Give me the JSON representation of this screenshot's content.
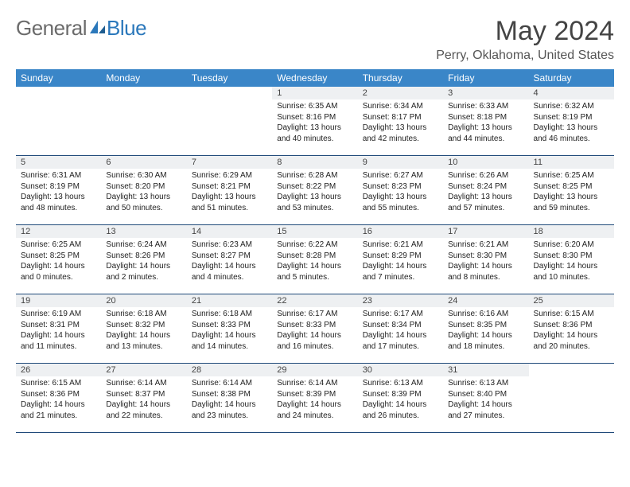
{
  "logo": {
    "general": "General",
    "blue": "Blue"
  },
  "title": "May 2024",
  "location": "Perry, Oklahoma, United States",
  "colors": {
    "header_bg": "#3a86c8",
    "header_text": "#ffffff",
    "daynum_bg": "#eef0f2",
    "week_border": "#204a7a",
    "title_color": "#444444",
    "logo_gray": "#6b6b6b",
    "logo_blue": "#2b78bb"
  },
  "day_names": [
    "Sunday",
    "Monday",
    "Tuesday",
    "Wednesday",
    "Thursday",
    "Friday",
    "Saturday"
  ],
  "weeks": [
    [
      null,
      null,
      null,
      {
        "n": "1",
        "sr": "Sunrise: 6:35 AM",
        "ss": "Sunset: 8:16 PM",
        "d1": "Daylight: 13 hours",
        "d2": "and 40 minutes."
      },
      {
        "n": "2",
        "sr": "Sunrise: 6:34 AM",
        "ss": "Sunset: 8:17 PM",
        "d1": "Daylight: 13 hours",
        "d2": "and 42 minutes."
      },
      {
        "n": "3",
        "sr": "Sunrise: 6:33 AM",
        "ss": "Sunset: 8:18 PM",
        "d1": "Daylight: 13 hours",
        "d2": "and 44 minutes."
      },
      {
        "n": "4",
        "sr": "Sunrise: 6:32 AM",
        "ss": "Sunset: 8:19 PM",
        "d1": "Daylight: 13 hours",
        "d2": "and 46 minutes."
      }
    ],
    [
      {
        "n": "5",
        "sr": "Sunrise: 6:31 AM",
        "ss": "Sunset: 8:19 PM",
        "d1": "Daylight: 13 hours",
        "d2": "and 48 minutes."
      },
      {
        "n": "6",
        "sr": "Sunrise: 6:30 AM",
        "ss": "Sunset: 8:20 PM",
        "d1": "Daylight: 13 hours",
        "d2": "and 50 minutes."
      },
      {
        "n": "7",
        "sr": "Sunrise: 6:29 AM",
        "ss": "Sunset: 8:21 PM",
        "d1": "Daylight: 13 hours",
        "d2": "and 51 minutes."
      },
      {
        "n": "8",
        "sr": "Sunrise: 6:28 AM",
        "ss": "Sunset: 8:22 PM",
        "d1": "Daylight: 13 hours",
        "d2": "and 53 minutes."
      },
      {
        "n": "9",
        "sr": "Sunrise: 6:27 AM",
        "ss": "Sunset: 8:23 PM",
        "d1": "Daylight: 13 hours",
        "d2": "and 55 minutes."
      },
      {
        "n": "10",
        "sr": "Sunrise: 6:26 AM",
        "ss": "Sunset: 8:24 PM",
        "d1": "Daylight: 13 hours",
        "d2": "and 57 minutes."
      },
      {
        "n": "11",
        "sr": "Sunrise: 6:25 AM",
        "ss": "Sunset: 8:25 PM",
        "d1": "Daylight: 13 hours",
        "d2": "and 59 minutes."
      }
    ],
    [
      {
        "n": "12",
        "sr": "Sunrise: 6:25 AM",
        "ss": "Sunset: 8:25 PM",
        "d1": "Daylight: 14 hours",
        "d2": "and 0 minutes."
      },
      {
        "n": "13",
        "sr": "Sunrise: 6:24 AM",
        "ss": "Sunset: 8:26 PM",
        "d1": "Daylight: 14 hours",
        "d2": "and 2 minutes."
      },
      {
        "n": "14",
        "sr": "Sunrise: 6:23 AM",
        "ss": "Sunset: 8:27 PM",
        "d1": "Daylight: 14 hours",
        "d2": "and 4 minutes."
      },
      {
        "n": "15",
        "sr": "Sunrise: 6:22 AM",
        "ss": "Sunset: 8:28 PM",
        "d1": "Daylight: 14 hours",
        "d2": "and 5 minutes."
      },
      {
        "n": "16",
        "sr": "Sunrise: 6:21 AM",
        "ss": "Sunset: 8:29 PM",
        "d1": "Daylight: 14 hours",
        "d2": "and 7 minutes."
      },
      {
        "n": "17",
        "sr": "Sunrise: 6:21 AM",
        "ss": "Sunset: 8:30 PM",
        "d1": "Daylight: 14 hours",
        "d2": "and 8 minutes."
      },
      {
        "n": "18",
        "sr": "Sunrise: 6:20 AM",
        "ss": "Sunset: 8:30 PM",
        "d1": "Daylight: 14 hours",
        "d2": "and 10 minutes."
      }
    ],
    [
      {
        "n": "19",
        "sr": "Sunrise: 6:19 AM",
        "ss": "Sunset: 8:31 PM",
        "d1": "Daylight: 14 hours",
        "d2": "and 11 minutes."
      },
      {
        "n": "20",
        "sr": "Sunrise: 6:18 AM",
        "ss": "Sunset: 8:32 PM",
        "d1": "Daylight: 14 hours",
        "d2": "and 13 minutes."
      },
      {
        "n": "21",
        "sr": "Sunrise: 6:18 AM",
        "ss": "Sunset: 8:33 PM",
        "d1": "Daylight: 14 hours",
        "d2": "and 14 minutes."
      },
      {
        "n": "22",
        "sr": "Sunrise: 6:17 AM",
        "ss": "Sunset: 8:33 PM",
        "d1": "Daylight: 14 hours",
        "d2": "and 16 minutes."
      },
      {
        "n": "23",
        "sr": "Sunrise: 6:17 AM",
        "ss": "Sunset: 8:34 PM",
        "d1": "Daylight: 14 hours",
        "d2": "and 17 minutes."
      },
      {
        "n": "24",
        "sr": "Sunrise: 6:16 AM",
        "ss": "Sunset: 8:35 PM",
        "d1": "Daylight: 14 hours",
        "d2": "and 18 minutes."
      },
      {
        "n": "25",
        "sr": "Sunrise: 6:15 AM",
        "ss": "Sunset: 8:36 PM",
        "d1": "Daylight: 14 hours",
        "d2": "and 20 minutes."
      }
    ],
    [
      {
        "n": "26",
        "sr": "Sunrise: 6:15 AM",
        "ss": "Sunset: 8:36 PM",
        "d1": "Daylight: 14 hours",
        "d2": "and 21 minutes."
      },
      {
        "n": "27",
        "sr": "Sunrise: 6:14 AM",
        "ss": "Sunset: 8:37 PM",
        "d1": "Daylight: 14 hours",
        "d2": "and 22 minutes."
      },
      {
        "n": "28",
        "sr": "Sunrise: 6:14 AM",
        "ss": "Sunset: 8:38 PM",
        "d1": "Daylight: 14 hours",
        "d2": "and 23 minutes."
      },
      {
        "n": "29",
        "sr": "Sunrise: 6:14 AM",
        "ss": "Sunset: 8:39 PM",
        "d1": "Daylight: 14 hours",
        "d2": "and 24 minutes."
      },
      {
        "n": "30",
        "sr": "Sunrise: 6:13 AM",
        "ss": "Sunset: 8:39 PM",
        "d1": "Daylight: 14 hours",
        "d2": "and 26 minutes."
      },
      {
        "n": "31",
        "sr": "Sunrise: 6:13 AM",
        "ss": "Sunset: 8:40 PM",
        "d1": "Daylight: 14 hours",
        "d2": "and 27 minutes."
      },
      null
    ]
  ]
}
